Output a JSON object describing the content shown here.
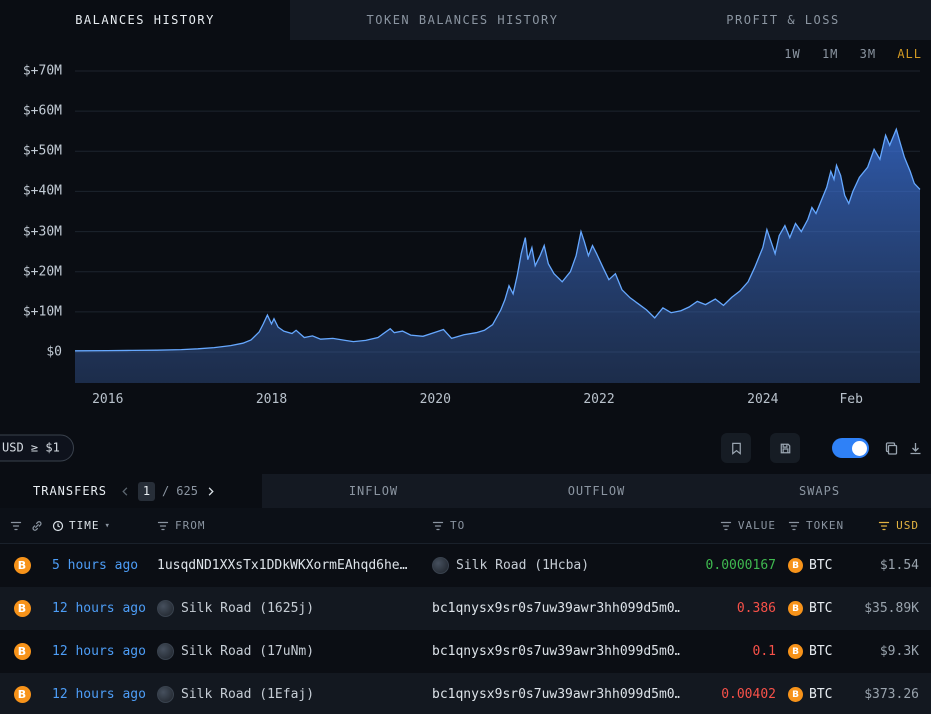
{
  "tabs": {
    "balances": "BALANCES HISTORY",
    "token_balances": "TOKEN BALANCES HISTORY",
    "profit_loss": "PROFIT & LOSS"
  },
  "chart": {
    "range_options": [
      "1W",
      "1M",
      "3M",
      "ALL"
    ],
    "selected_range": "ALL"
  },
  "chart_data": {
    "type": "area",
    "title": "Balances History",
    "unit": "USD millions",
    "x_range": [
      2015.6,
      2025.92
    ],
    "y_range": [
      0,
      70
    ],
    "y_tick_values": [
      0,
      10,
      20,
      30,
      40,
      50,
      60,
      70
    ],
    "y_tick_labels": [
      "$0",
      "$+10M",
      "$+20M",
      "$+30M",
      "$+40M",
      "$+50M",
      "$+60M",
      "$+70M"
    ],
    "x_ticks": [
      {
        "label": "2016",
        "x": 2016
      },
      {
        "label": "2018",
        "x": 2018
      },
      {
        "label": "2020",
        "x": 2020
      },
      {
        "label": "2022",
        "x": 2022
      },
      {
        "label": "2024",
        "x": 2024
      },
      {
        "label": "Feb",
        "x": 2025.08
      }
    ],
    "grid": "horizontal",
    "legend": "none",
    "line_color": "#66a8ff",
    "fill_top": "rgba(62,122,235,0.70)",
    "fill_bottom": "rgba(58,96,165,0.38)",
    "points": [
      [
        2015.6,
        0.3
      ],
      [
        2016.0,
        0.35
      ],
      [
        2016.3,
        0.4
      ],
      [
        2016.6,
        0.45
      ],
      [
        2016.9,
        0.6
      ],
      [
        2017.1,
        0.8
      ],
      [
        2017.3,
        1.1
      ],
      [
        2017.5,
        1.6
      ],
      [
        2017.65,
        2.2
      ],
      [
        2017.75,
        3.0
      ],
      [
        2017.85,
        5.0
      ],
      [
        2017.9,
        7.0
      ],
      [
        2017.95,
        9.2
      ],
      [
        2018.0,
        7.0
      ],
      [
        2018.03,
        8.3
      ],
      [
        2018.08,
        6.2
      ],
      [
        2018.15,
        5.2
      ],
      [
        2018.25,
        4.6
      ],
      [
        2018.3,
        5.4
      ],
      [
        2018.4,
        3.6
      ],
      [
        2018.5,
        4.0
      ],
      [
        2018.6,
        3.2
      ],
      [
        2018.75,
        3.4
      ],
      [
        2018.9,
        2.9
      ],
      [
        2019.0,
        2.6
      ],
      [
        2019.15,
        2.9
      ],
      [
        2019.3,
        3.6
      ],
      [
        2019.45,
        5.8
      ],
      [
        2019.5,
        4.8
      ],
      [
        2019.6,
        5.2
      ],
      [
        2019.7,
        4.2
      ],
      [
        2019.85,
        3.9
      ],
      [
        2020.0,
        4.9
      ],
      [
        2020.1,
        5.6
      ],
      [
        2020.2,
        3.4
      ],
      [
        2020.35,
        4.3
      ],
      [
        2020.5,
        4.8
      ],
      [
        2020.6,
        5.4
      ],
      [
        2020.7,
        6.8
      ],
      [
        2020.8,
        10.5
      ],
      [
        2020.85,
        13.0
      ],
      [
        2020.9,
        16.5
      ],
      [
        2020.95,
        14.5
      ],
      [
        2021.0,
        19.0
      ],
      [
        2021.05,
        24.5
      ],
      [
        2021.1,
        28.5
      ],
      [
        2021.13,
        23.0
      ],
      [
        2021.18,
        26.0
      ],
      [
        2021.22,
        21.5
      ],
      [
        2021.28,
        24.0
      ],
      [
        2021.33,
        26.5
      ],
      [
        2021.38,
        22.0
      ],
      [
        2021.45,
        19.5
      ],
      [
        2021.55,
        17.5
      ],
      [
        2021.65,
        20.0
      ],
      [
        2021.72,
        24.0
      ],
      [
        2021.78,
        30.0
      ],
      [
        2021.82,
        27.5
      ],
      [
        2021.87,
        24.0
      ],
      [
        2021.92,
        26.5
      ],
      [
        2021.97,
        24.5
      ],
      [
        2022.05,
        21.0
      ],
      [
        2022.12,
        18.0
      ],
      [
        2022.2,
        19.5
      ],
      [
        2022.28,
        15.5
      ],
      [
        2022.38,
        13.5
      ],
      [
        2022.48,
        12.0
      ],
      [
        2022.58,
        10.5
      ],
      [
        2022.68,
        8.5
      ],
      [
        2022.78,
        11.0
      ],
      [
        2022.88,
        9.8
      ],
      [
        2023.0,
        10.3
      ],
      [
        2023.1,
        11.2
      ],
      [
        2023.2,
        12.6
      ],
      [
        2023.3,
        11.8
      ],
      [
        2023.42,
        13.2
      ],
      [
        2023.52,
        11.6
      ],
      [
        2023.62,
        13.6
      ],
      [
        2023.72,
        15.2
      ],
      [
        2023.82,
        17.5
      ],
      [
        2023.9,
        21.0
      ],
      [
        2024.0,
        26.0
      ],
      [
        2024.05,
        30.5
      ],
      [
        2024.1,
        27.5
      ],
      [
        2024.15,
        24.5
      ],
      [
        2024.2,
        29.0
      ],
      [
        2024.27,
        31.5
      ],
      [
        2024.33,
        28.5
      ],
      [
        2024.4,
        32.0
      ],
      [
        2024.47,
        30.0
      ],
      [
        2024.55,
        33.0
      ],
      [
        2024.6,
        36.0
      ],
      [
        2024.65,
        34.5
      ],
      [
        2024.72,
        38.0
      ],
      [
        2024.78,
        41.0
      ],
      [
        2024.83,
        45.0
      ],
      [
        2024.87,
        43.0
      ],
      [
        2024.9,
        46.5
      ],
      [
        2024.95,
        44.0
      ],
      [
        2025.0,
        39.0
      ],
      [
        2025.05,
        37.0
      ],
      [
        2025.1,
        40.0
      ],
      [
        2025.18,
        43.5
      ],
      [
        2025.28,
        46.0
      ],
      [
        2025.36,
        50.5
      ],
      [
        2025.43,
        48.0
      ],
      [
        2025.5,
        54.0
      ],
      [
        2025.55,
        51.5
      ],
      [
        2025.63,
        55.5
      ],
      [
        2025.68,
        52.0
      ],
      [
        2025.73,
        48.5
      ],
      [
        2025.8,
        45.0
      ],
      [
        2025.85,
        42.0
      ],
      [
        2025.92,
        40.5
      ]
    ]
  },
  "controls": {
    "filter_chip": "USD ≥ $1",
    "toggle_on": true,
    "accent_color": "#2f81f7"
  },
  "transfers": {
    "tab_label": "TRANSFERS",
    "page": "1",
    "page_sep": "/",
    "page_total": "625",
    "tabs": [
      "INFLOW",
      "OUTFLOW",
      "SWAPS"
    ],
    "header": {
      "time": "TIME",
      "from": "FROM",
      "to": "TO",
      "value": "VALUE",
      "token": "TOKEN",
      "usd": "USD"
    },
    "sorted_column": "USD",
    "rows": [
      {
        "chain": "BTC",
        "time": "5 hours ago",
        "from": "1usqdND1XXsTx1DDkWKXormEAhqd6he…",
        "from_type": "address",
        "to": "Silk Road (1Hcba)",
        "to_type": "entity",
        "value": "0.0000167",
        "direction": "in",
        "token": "BTC",
        "usd": "$1.54"
      },
      {
        "chain": "BTC",
        "time": "12 hours ago",
        "from": "Silk Road (1625j)",
        "from_type": "entity",
        "to": "bc1qnysx9sr0s7uw39awr3hh099d5m0…",
        "to_type": "address",
        "value": "0.386",
        "direction": "out",
        "token": "BTC",
        "usd": "$35.89K"
      },
      {
        "chain": "BTC",
        "time": "12 hours ago",
        "from": "Silk Road (17uNm)",
        "from_type": "entity",
        "to": "bc1qnysx9sr0s7uw39awr3hh099d5m0…",
        "to_type": "address",
        "value": "0.1",
        "direction": "out",
        "token": "BTC",
        "usd": "$9.3K"
      },
      {
        "chain": "BTC",
        "time": "12 hours ago",
        "from": "Silk Road (1Efaj)",
        "from_type": "entity",
        "to": "bc1qnysx9sr0s7uw39awr3hh099d5m0…",
        "to_type": "address",
        "value": "0.00402",
        "direction": "out",
        "token": "BTC",
        "usd": "$373.26"
      }
    ],
    "token_symbol": "B"
  },
  "icons": {
    "caret_down": "▾"
  }
}
